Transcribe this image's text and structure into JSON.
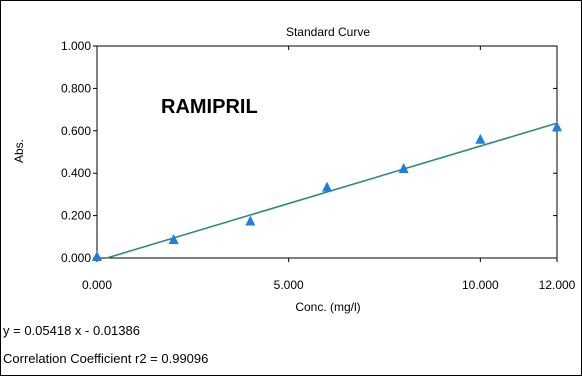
{
  "chart_data": {
    "type": "scatter",
    "title": "Standard Curve",
    "xlabel": "Conc. (mg/l)",
    "ylabel": "Abs.",
    "annotation": "RAMIPRIL",
    "xlim": [
      0,
      12
    ],
    "ylim": [
      0,
      1
    ],
    "x_ticks": [
      "0.000",
      "5.000",
      "10.000",
      "12.000"
    ],
    "x_tick_values": [
      0,
      5,
      10,
      12
    ],
    "y_ticks": [
      "0.000",
      "0.200",
      "0.400",
      "0.600",
      "0.800",
      "1.000"
    ],
    "y_tick_values": [
      0,
      0.2,
      0.4,
      0.6,
      0.8,
      1.0
    ],
    "grid": false,
    "series": [
      {
        "x": [
          0,
          2,
          4,
          6,
          8,
          10,
          12
        ],
        "y": [
          0.005,
          0.085,
          0.172,
          0.332,
          0.42,
          0.558,
          0.617
        ],
        "marker": "triangle",
        "color": "#1e7fe0"
      }
    ],
    "fit_line": {
      "slope": 0.05418,
      "intercept": -0.01386,
      "color": "#2e8b7a"
    },
    "equation": "y = 0.05418 x - 0.01386",
    "correlation": "Correlation Coefficient r2 = 0.99096"
  }
}
